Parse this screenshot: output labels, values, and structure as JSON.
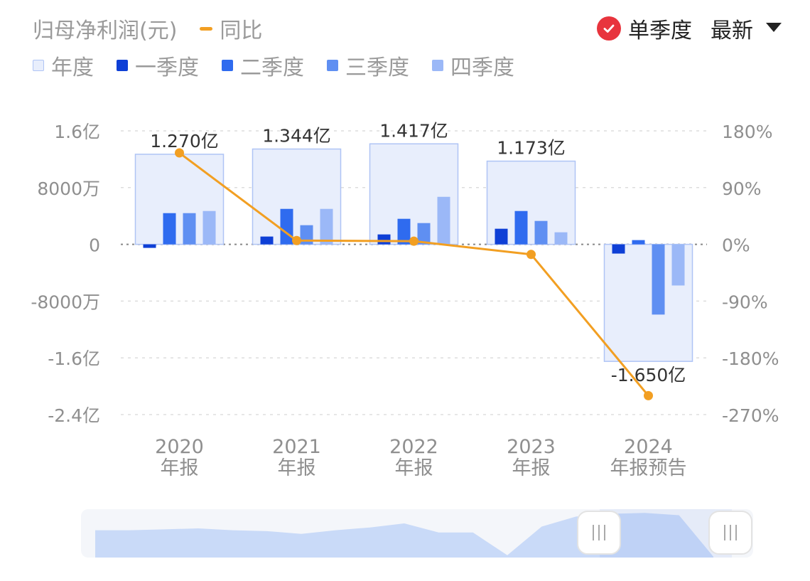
{
  "header": {
    "title": "归母净利润(元)",
    "yoy_legend": "同比",
    "toggle_label": "单季度",
    "dropdown_label": "最新"
  },
  "legend": [
    {
      "label": "年度",
      "color": "#E8EEFC",
      "border": "#AFC4F5"
    },
    {
      "label": "一季度",
      "color": "#0E3FD6"
    },
    {
      "label": "二季度",
      "color": "#2F6BEF"
    },
    {
      "label": "三季度",
      "color": "#5F8FF2"
    },
    {
      "label": "四季度",
      "color": "#9BB8F7"
    }
  ],
  "colors": {
    "line": "#F29F22",
    "annual_fill": "#E8EEFC",
    "annual_border": "#AFC4F5",
    "grid": "#dddddd",
    "zero": "#888888",
    "axis_text": "#8f8f8f",
    "check": "#E8343D",
    "slider_fill": "#C9DAF8"
  },
  "chart_data": {
    "type": "bar",
    "categories": [
      [
        "2020",
        "年报"
      ],
      [
        "2021",
        "年报"
      ],
      [
        "2022",
        "年报"
      ],
      [
        "2023",
        "年报"
      ],
      [
        "2024",
        "年报预告"
      ]
    ],
    "annual": [
      12700,
      13440,
      14170,
      11730,
      -16500
    ],
    "annual_labels": [
      "1.270亿",
      "1.344亿",
      "1.417亿",
      "1.173亿",
      "-1.650亿"
    ],
    "series": [
      {
        "name": "一季度",
        "values": [
          -500,
          1100,
          1400,
          2200,
          -1300
        ]
      },
      {
        "name": "二季度",
        "values": [
          4400,
          5000,
          3600,
          4700,
          600
        ]
      },
      {
        "name": "三季度",
        "values": [
          4400,
          2700,
          3000,
          3300,
          -9900
        ]
      },
      {
        "name": "四季度",
        "values": [
          4700,
          5000,
          6700,
          1700,
          -5800
        ]
      }
    ],
    "yoy": {
      "name": "同比",
      "values": [
        145,
        6,
        5,
        -16,
        -240
      ]
    },
    "y_left": {
      "ticks": [
        16000,
        8000,
        0,
        -8000,
        -16000,
        -24000
      ],
      "tick_labels": [
        "1.6亿",
        "8000万",
        "0",
        "-8000万",
        "-1.6亿",
        "-2.4亿"
      ],
      "unit": "万元",
      "lim": [
        -24000,
        16000
      ]
    },
    "y_right": {
      "ticks": [
        180,
        90,
        0,
        -90,
        -180,
        -270
      ],
      "tick_labels": [
        "180%",
        "90%",
        "0%",
        "-90%",
        "-180%",
        "-270%"
      ],
      "lim": [
        -270,
        180
      ]
    },
    "grid": true,
    "legend_position": "top-left"
  },
  "slider": {
    "overview": [
      0.6,
      0.6,
      0.62,
      0.64,
      0.6,
      0.58,
      0.52,
      0.6,
      0.66,
      0.75,
      0.55,
      0.55,
      0.05,
      0.68,
      0.9,
      0.96,
      0.98,
      0.93,
      0.02
    ],
    "handle_left_icon": "grip-icon",
    "handle_right_icon": "grip-icon"
  }
}
